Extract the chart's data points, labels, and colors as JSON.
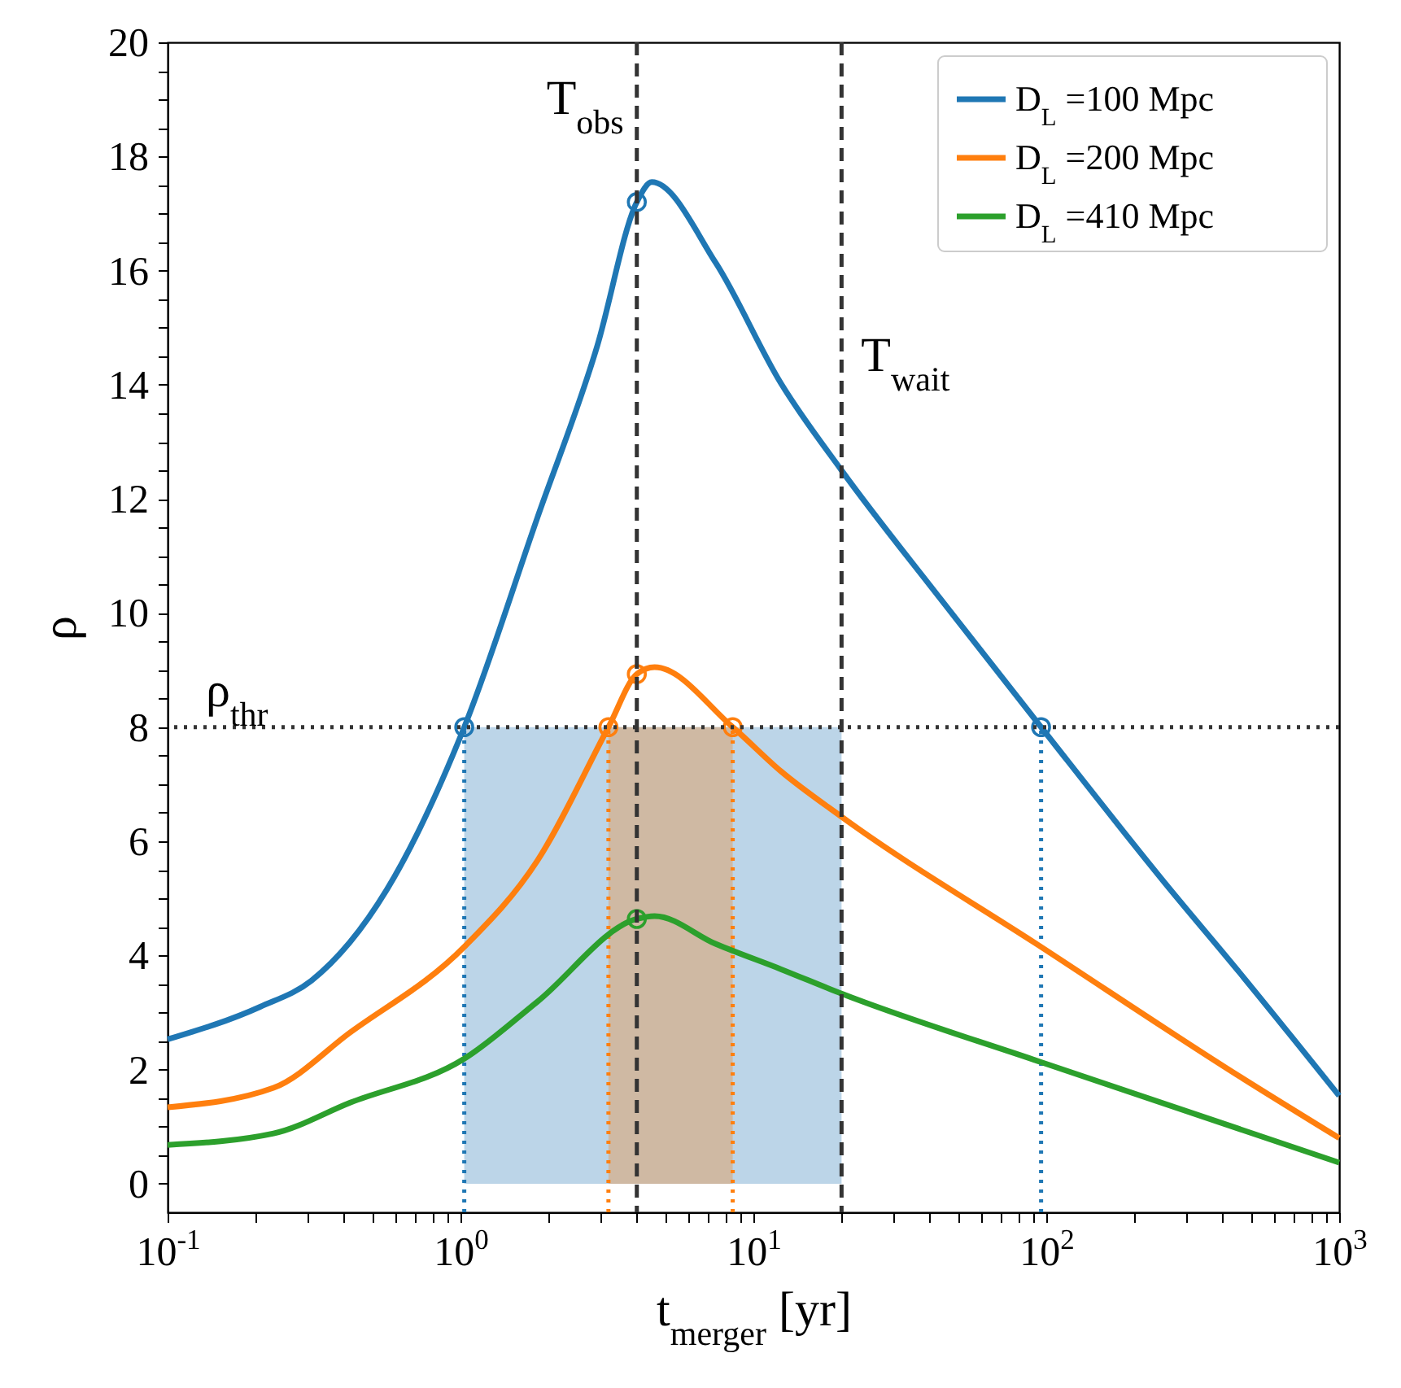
{
  "chart_data": {
    "type": "line",
    "xlabel": "t$_{merger}$  [yr]",
    "ylabel": "ρ",
    "log": "x",
    "xlim": [
      0.1,
      1000
    ],
    "ylim": [
      -0.5,
      20
    ],
    "xticks": [
      {
        "value": 0.1,
        "label": "10$^{-1}$"
      },
      {
        "value": 0.2,
        "label": null
      },
      {
        "value": 0.3,
        "label": null
      },
      {
        "value": 0.4,
        "label": null
      },
      {
        "value": 0.5,
        "label": null
      },
      {
        "value": 0.6,
        "label": null
      },
      {
        "value": 0.7,
        "label": null
      },
      {
        "value": 0.8,
        "label": null
      },
      {
        "value": 0.9,
        "label": null
      },
      {
        "value": 1,
        "label": "10$^{0}$"
      },
      {
        "value": 2,
        "label": null
      },
      {
        "value": 3,
        "label": null
      },
      {
        "value": 4,
        "label": null
      },
      {
        "value": 5,
        "label": null
      },
      {
        "value": 6,
        "label": null
      },
      {
        "value": 7,
        "label": null
      },
      {
        "value": 8,
        "label": null
      },
      {
        "value": 9,
        "label": null
      },
      {
        "value": 10,
        "label": "10$^{1}$"
      },
      {
        "value": 20,
        "label": null
      },
      {
        "value": 30,
        "label": null
      },
      {
        "value": 40,
        "label": null
      },
      {
        "value": 50,
        "label": null
      },
      {
        "value": 60,
        "label": null
      },
      {
        "value": 70,
        "label": null
      },
      {
        "value": 80,
        "label": null
      },
      {
        "value": 90,
        "label": null
      },
      {
        "value": 100,
        "label": "10$^{2}$"
      },
      {
        "value": 200,
        "label": null
      },
      {
        "value": 300,
        "label": null
      },
      {
        "value": 400,
        "label": null
      },
      {
        "value": 500,
        "label": null
      },
      {
        "value": 600,
        "label": null
      },
      {
        "value": 700,
        "label": null
      },
      {
        "value": 800,
        "label": null
      },
      {
        "value": 900,
        "label": null
      },
      {
        "value": 1000,
        "label": "10$^{3}$"
      }
    ],
    "yticks": [
      0,
      {
        "value": 0.5,
        "label": null
      },
      {
        "value": 1,
        "label": null
      },
      {
        "value": 1.5,
        "label": null
      },
      2,
      {
        "value": 2.5,
        "label": null
      },
      {
        "value": 3,
        "label": null
      },
      {
        "value": 3.5,
        "label": null
      },
      4,
      {
        "value": 4.5,
        "label": null
      },
      {
        "value": 5,
        "label": null
      },
      {
        "value": 5.5,
        "label": null
      },
      6,
      {
        "value": 6.5,
        "label": null
      },
      {
        "value": 7,
        "label": null
      },
      {
        "value": 7.5,
        "label": null
      },
      8,
      {
        "value": 8.5,
        "label": null
      },
      {
        "value": 9,
        "label": null
      },
      {
        "value": 9.5,
        "label": null
      },
      10,
      {
        "value": 10.5,
        "label": null
      },
      {
        "value": 11,
        "label": null
      },
      {
        "value": 11.5,
        "label": null
      },
      12,
      {
        "value": 12.5,
        "label": null
      },
      {
        "value": 13,
        "label": null
      },
      {
        "value": 13.5,
        "label": null
      },
      14,
      {
        "value": 14.5,
        "label": null
      },
      {
        "value": 15,
        "label": null
      },
      {
        "value": 15.5,
        "label": null
      },
      16,
      {
        "value": 16.5,
        "label": null
      },
      {
        "value": 17,
        "label": null
      },
      {
        "value": 17.5,
        "label": null
      },
      18,
      {
        "value": 18.5,
        "label": null
      },
      {
        "value": 19,
        "label": null
      },
      {
        "value": 19.5,
        "label": null
      },
      20
    ],
    "grid": false,
    "legend": "top right",
    "line_style": "solid",
    "marker": "none",
    "series": [
      {
        "type": "area",
        "color": "#bcd5e8",
        "x": [
          1.03,
          20
        ],
        "values": [
          8,
          8
        ]
      },
      {
        "type": "area",
        "color": "#cfb9a3",
        "x": [
          3.2,
          8.5
        ],
        "values": [
          8,
          8
        ]
      },
      {
        "type": "line",
        "line_style": "dotted",
        "color": "#1f77b4",
        "x": [
          1.03,
          1.03
        ],
        "values": [
          -0.5,
          8
        ]
      },
      {
        "type": "line",
        "line_style": "dotted",
        "color": "#1f77b4",
        "x": [
          96,
          96
        ],
        "values": [
          -0.5,
          8
        ]
      },
      {
        "type": "line",
        "line_style": "dotted",
        "color": "#ff7f0e",
        "x": [
          3.2,
          3.2
        ],
        "values": [
          -0.5,
          8
        ]
      },
      {
        "type": "line",
        "line_style": "dotted",
        "color": "#ff7f0e",
        "x": [
          8.5,
          8.5
        ],
        "values": [
          -0.5,
          8
        ]
      },
      {
        "name": "D$_{L}$ =100 Mpc",
        "color": "#1f77b4",
        "x": [
          0.1,
          0.207,
          0.31,
          0.56,
          1.03,
          1.83,
          2.93,
          4.0,
          4.5,
          7.45,
          12.4,
          20,
          43.5,
          96,
          255,
          457,
          1000
        ],
        "values": [
          2.53,
          3.1,
          3.56,
          5.15,
          8,
          11.67,
          14.68,
          17.2,
          17.55,
          16.13,
          14.03,
          12.5,
          10.25,
          8,
          5.26,
          3.7,
          1.54
        ]
      },
      {
        "name": "D$_{L}$ =200 Mpc",
        "color": "#ff7f0e",
        "x": [
          0.1,
          0.23,
          0.42,
          1.03,
          1.83,
          3.2,
          4.0,
          4.6,
          8.5,
          12.4,
          20,
          96,
          457,
          1000
        ],
        "values": [
          1.34,
          1.68,
          2.65,
          4.15,
          5.66,
          8,
          8.93,
          9.05,
          8,
          7.23,
          6.43,
          4.15,
          1.88,
          0.8
        ]
      },
      {
        "name": "D$_{L}$ =410 Mpc",
        "color": "#2ca02c",
        "x": [
          0.1,
          0.23,
          0.42,
          1.03,
          1.83,
          4.0,
          4.6,
          7.45,
          12.4,
          20,
          96,
          1000
        ],
        "values": [
          0.68,
          0.88,
          1.42,
          2.19,
          3.19,
          4.64,
          4.69,
          4.2,
          3.76,
          3.33,
          2.13,
          0.37
        ]
      },
      {
        "type": "scatter",
        "marker": "circle",
        "color": "#1f77b4",
        "x": [
          1.03,
          4.0,
          96
        ],
        "values": [
          8,
          17.2,
          8
        ]
      },
      {
        "type": "scatter",
        "marker": "circle",
        "color": "#ff7f0e",
        "x": [
          3.2,
          4.0,
          8.5
        ],
        "values": [
          8,
          8.93,
          8
        ]
      },
      {
        "type": "scatter",
        "marker": "circle",
        "color": "#2ca02c",
        "x": [
          4.0
        ],
        "values": [
          4.64
        ]
      }
    ],
    "ref_lines": [
      {
        "axis": "y",
        "value": 8,
        "label": "ρ$_{thr}$",
        "line_style": "dotted",
        "color": "#333333"
      },
      {
        "axis": "x",
        "value": 4,
        "label": "T$_{obs}$",
        "line_style": "dashed",
        "color": "#333333"
      },
      {
        "axis": "x",
        "value": 20,
        "label": "T$_{wait}$",
        "line_style": "dashed",
        "color": "#333333"
      }
    ]
  }
}
